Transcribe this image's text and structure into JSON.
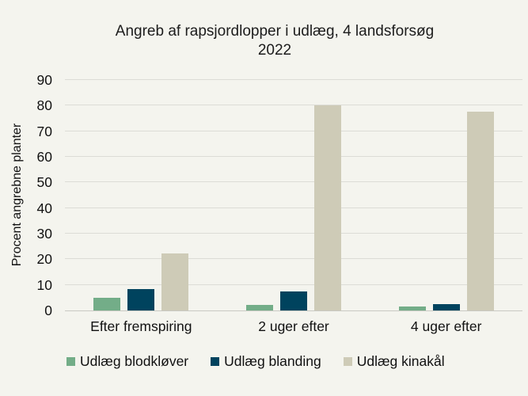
{
  "title": {
    "line1": "Angreb af rapsjordlopper i udlæg, 4 landsforsøg",
    "line2": "2022"
  },
  "chart_data": {
    "type": "bar",
    "title": "Angreb af rapsjordlopper i udlæg, 4 landsforsøg 2022",
    "xlabel": "",
    "ylabel": "Procent angrebne planter",
    "categories": [
      "Efter fremspiring",
      "2 uger efter",
      "4 uger efter"
    ],
    "series": [
      {
        "name": "Udlæg blodkløver",
        "color": "#73ad88",
        "values": [
          5.0,
          2.3,
          1.7
        ]
      },
      {
        "name": "Udlæg blanding",
        "color": "#00435e",
        "values": [
          8.5,
          7.3,
          2.4
        ]
      },
      {
        "name": "Udlæg kinakål",
        "color": "#cecbb7",
        "values": [
          22.3,
          80.1,
          77.6
        ]
      }
    ],
    "ylim": [
      0,
      90
    ],
    "yticks": [
      0,
      10,
      20,
      30,
      40,
      50,
      60,
      70,
      80,
      90
    ],
    "grid": true,
    "legend_position": "bottom"
  },
  "colors": {
    "background": "#f4f4ee",
    "gridline": "#dcdcd6",
    "axis_line": "#c9c9c3",
    "text": "#1c1c1c"
  }
}
